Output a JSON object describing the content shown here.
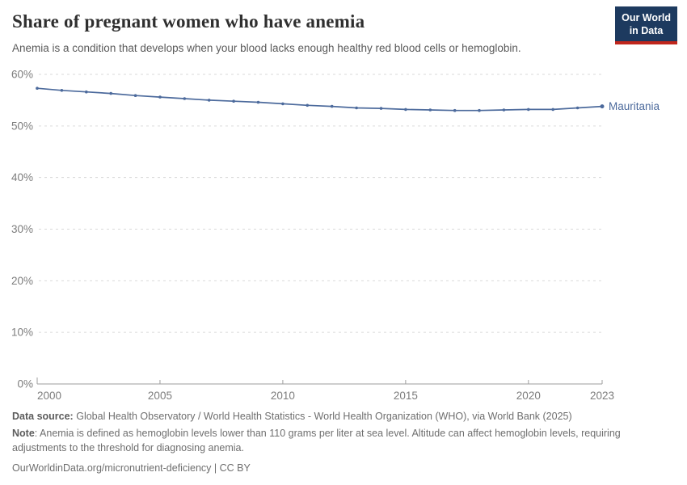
{
  "header": {
    "title": "Share of pregnant women who have anemia",
    "subtitle": "Anemia is a condition that develops when your blood lacks enough healthy red blood cells or hemoglobin.",
    "logo_line1": "Our World",
    "logo_line2": "in Data"
  },
  "chart_data": {
    "type": "line",
    "title": "Share of pregnant women who have anemia",
    "xlabel": "",
    "ylabel": "",
    "x": [
      2000,
      2001,
      2002,
      2003,
      2004,
      2005,
      2006,
      2007,
      2008,
      2009,
      2010,
      2011,
      2012,
      2013,
      2014,
      2015,
      2016,
      2017,
      2018,
      2019,
      2020,
      2021,
      2022,
      2023
    ],
    "series": [
      {
        "name": "Mauritania",
        "color": "#4c6a9c",
        "values": [
          57.3,
          56.9,
          56.6,
          56.3,
          55.9,
          55.6,
          55.3,
          55.0,
          54.8,
          54.6,
          54.3,
          54.0,
          53.8,
          53.5,
          53.4,
          53.2,
          53.1,
          53.0,
          53.0,
          53.1,
          53.2,
          53.2,
          53.5,
          53.8
        ]
      }
    ],
    "ylim": [
      0,
      60
    ],
    "yticks": [
      0,
      10,
      20,
      30,
      40,
      50,
      60
    ],
    "ytick_suffix": "%",
    "xticks": [
      2000,
      2005,
      2010,
      2015,
      2020,
      2023
    ],
    "grid": "horizontal-dashed",
    "legend_position": "line-end"
  },
  "footer": {
    "source_label": "Data source:",
    "source_text": "Global Health Observatory / World Health Statistics - World Health Organization (WHO), via World Bank (2025)",
    "note_label": "Note",
    "note_text": ": Anemia is defined as hemoglobin levels lower than 110 grams per liter at sea level. Altitude can affect hemoglobin levels, requiring adjustments to the threshold for diagnosing anemia.",
    "citation": "OurWorldinData.org/micronutrient-deficiency | CC BY"
  },
  "colors": {
    "line": "#4c6a9c",
    "logo_bg": "#1d3a5f",
    "logo_stripe": "#c0261c",
    "grid": "#dadada",
    "axis": "#9e9e9e",
    "tick_label": "#7d7d7d"
  }
}
